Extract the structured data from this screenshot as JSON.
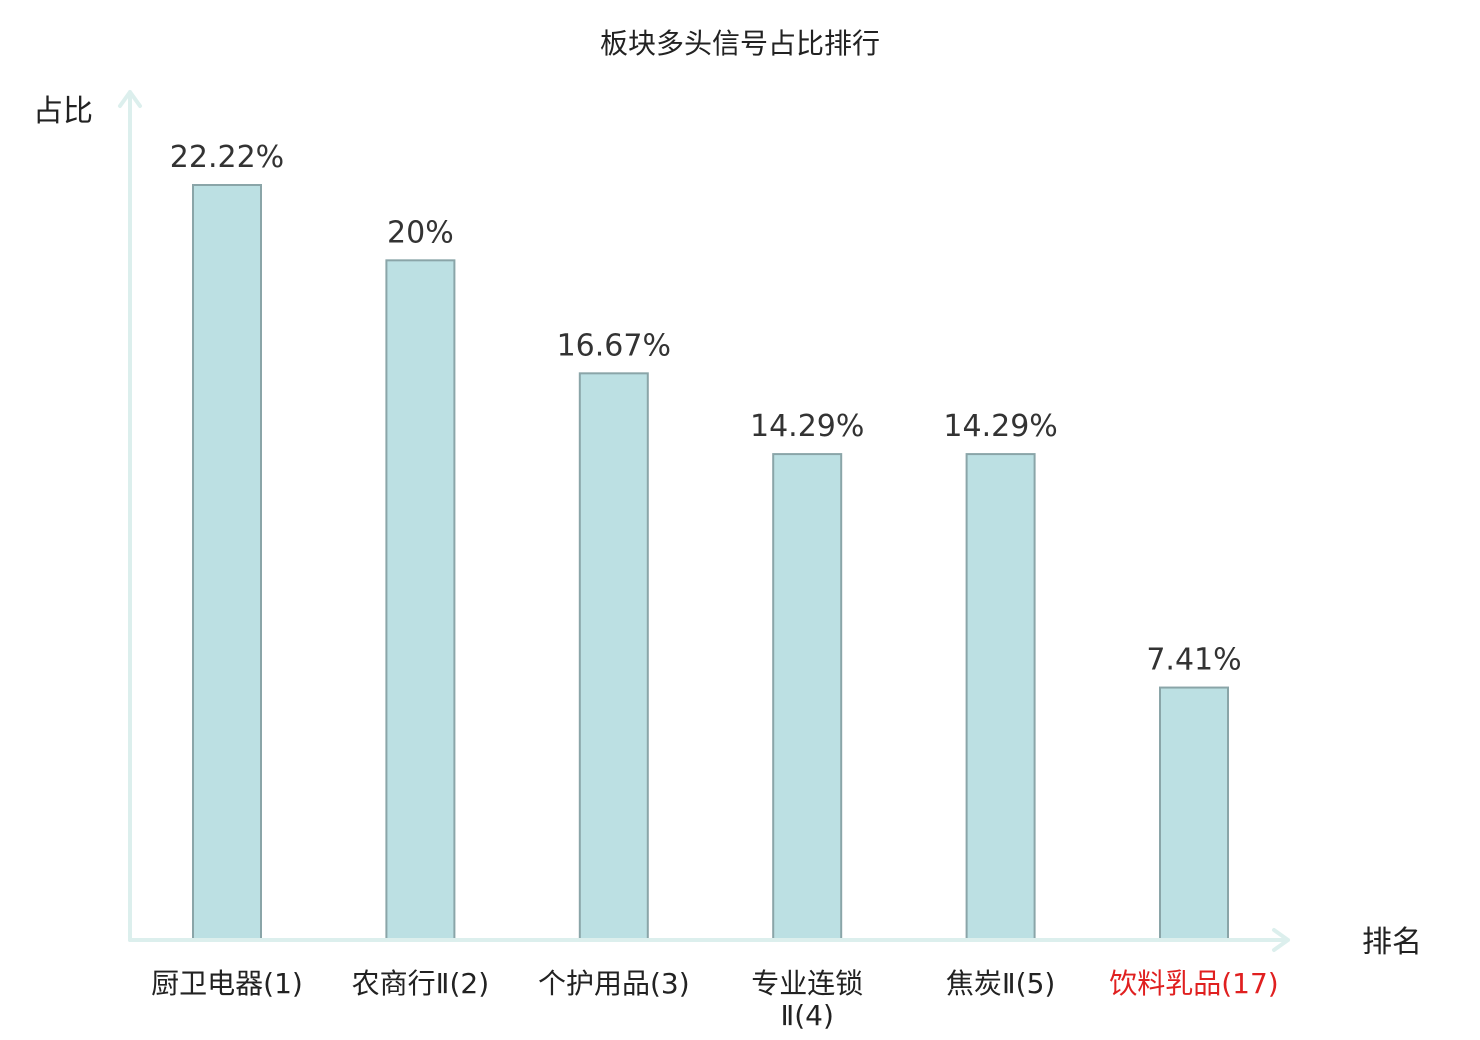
{
  "chart_data": {
    "type": "bar",
    "title": "板块多头信号占比排行",
    "ylabel": "占比",
    "xlabel": "排名",
    "categories": [
      {
        "lines": [
          "厨卫电器(1)"
        ],
        "highlight": false
      },
      {
        "lines": [
          "农商行Ⅱ(2)"
        ],
        "highlight": false
      },
      {
        "lines": [
          "个护用品(3)"
        ],
        "highlight": false
      },
      {
        "lines": [
          "专业连锁",
          "Ⅱ(4)"
        ],
        "highlight": false
      },
      {
        "lines": [
          "焦炭Ⅱ(5)"
        ],
        "highlight": false
      },
      {
        "lines": [
          "饮料乳品(17)"
        ],
        "highlight": true
      }
    ],
    "values": [
      22.22,
      20,
      16.67,
      14.29,
      14.29,
      7.41
    ],
    "value_labels": [
      "22.22%",
      "20%",
      "16.67%",
      "14.29%",
      "14.29%",
      "7.41%"
    ],
    "ylim": [
      0,
      22.22
    ],
    "grid": false,
    "colors": {
      "bar_fill": "#bce0e3",
      "bar_stroke": "#8aa5a8",
      "axis": "#dcefed",
      "highlight": "#e02020"
    }
  }
}
